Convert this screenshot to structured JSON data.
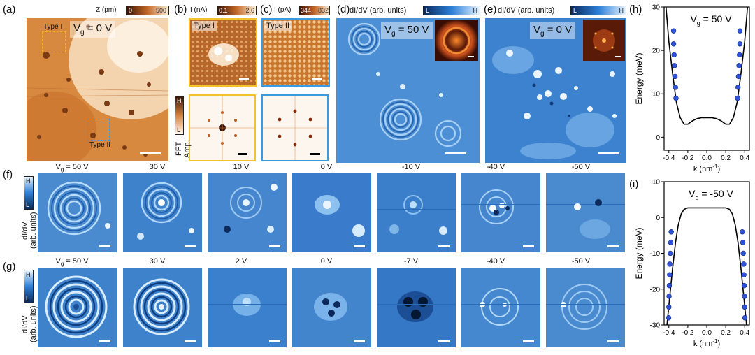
{
  "panels": {
    "a": {
      "letter": "(a)",
      "cbar_title": "Z (pm)",
      "cbar_min": "0",
      "cbar_max": "500",
      "vg": "V",
      "vg_sub": "g",
      "vg_val": " = 0 V",
      "type1": "Type I",
      "type2": "Type II"
    },
    "b": {
      "letter": "(b)",
      "cbar_title": "I (nA)",
      "cbar_min": "0.1",
      "cbar_max": "2.6",
      "tag": "Type I"
    },
    "c": {
      "letter": "(c)",
      "cbar_title": "I (pA)",
      "cbar_min": "344",
      "cbar_max": "832",
      "tag": "Type II"
    },
    "fft": {
      "label": "FFT Amp.",
      "hi": "H",
      "lo": "L"
    },
    "d": {
      "letter": "(d)",
      "cbar_title": "dI/dV (arb. units)",
      "lo": "L",
      "hi": "H",
      "vg": "V",
      "vg_sub": "g",
      "vg_val": " = 50 V"
    },
    "e": {
      "letter": "(e)",
      "cbar_title": "dI/dV (arb. units)",
      "lo": "L",
      "hi": "H",
      "vg": "V",
      "vg_sub": "g",
      "vg_val": " = 0 V"
    },
    "f": {
      "letter": "(f)",
      "ylabel1": "dI/dV",
      "ylabel2": "(arb. units)",
      "hi": "H",
      "lo": "L",
      "vg": "V",
      "vg_sub": "g",
      "captions": [
        " = 50 V",
        "30 V",
        "10 V",
        "0 V",
        "-10 V",
        "-40 V",
        "-50 V"
      ]
    },
    "g": {
      "letter": "(g)",
      "ylabel1": "dI/dV",
      "ylabel2": "(arb. units)",
      "hi": "H",
      "lo": "L",
      "vg": "V",
      "vg_sub": "g",
      "captions": [
        " = 50 V",
        "30 V",
        "2 V",
        "0 V",
        "-7 V",
        "-40 V",
        "-50 V"
      ]
    }
  },
  "chart_data": [
    {
      "panel": "(h)",
      "type": "line",
      "title": "V_g = 50 V",
      "title_main": "V",
      "title_sub": "g",
      "title_rest": " = 50 V",
      "xlabel": "k (nm",
      "xlabel_sup": "-1",
      "xlabel_end": ")",
      "ylabel": "Energy (meV)",
      "xlim": [
        -0.45,
        0.45
      ],
      "ylim": [
        -3,
        30
      ],
      "xticks": [
        "-0.4",
        "-0.2",
        "0.0",
        "0.2",
        "0.4"
      ],
      "xtick_values": [
        -0.4,
        -0.2,
        0.0,
        0.2,
        0.4
      ],
      "yticks": [
        "0",
        "10",
        "20",
        "30"
      ],
      "ytick_values": [
        0,
        10,
        20,
        30
      ],
      "curve": {
        "k": [
          -0.43,
          -0.4,
          -0.36,
          -0.32,
          -0.28,
          -0.24,
          -0.2,
          -0.15,
          -0.1,
          -0.05,
          0,
          0.05,
          0.1,
          0.15,
          0.2,
          0.24,
          0.28,
          0.32,
          0.36,
          0.4,
          0.43
        ],
        "E": [
          30,
          22,
          14.5,
          8,
          4.5,
          3,
          3,
          3.8,
          4.3,
          4.5,
          4.5,
          4.5,
          4.3,
          3.8,
          3,
          3,
          4.5,
          8,
          14.5,
          22,
          30
        ]
      },
      "points": {
        "k": [
          -0.35,
          -0.35,
          -0.345,
          -0.34,
          -0.335,
          -0.33,
          -0.325,
          0.325,
          0.33,
          0.335,
          0.34,
          0.345,
          0.35,
          0.35
        ],
        "E": [
          24.5,
          21.5,
          19,
          16.5,
          14,
          11.5,
          9,
          9,
          11.5,
          14,
          16.5,
          19,
          21.5,
          24.5
        ]
      }
    },
    {
      "panel": "(i)",
      "type": "line",
      "title": "V_g = -50 V",
      "title_main": "V",
      "title_sub": "g",
      "title_rest": " = -50 V",
      "xlabel": "k (nm",
      "xlabel_sup": "-1",
      "xlabel_end": ")",
      "ylabel": "Energy (meV)",
      "xlim": [
        -0.45,
        0.45
      ],
      "ylim": [
        -30,
        10
      ],
      "xticks": [
        "-0.4",
        "-0.2",
        "0.0",
        "0.2",
        "0.4"
      ],
      "xtick_values": [
        -0.4,
        -0.2,
        0.0,
        0.2,
        0.4
      ],
      "yticks": [
        "-30",
        "-20",
        "-10",
        "0",
        "10"
      ],
      "ytick_values": [
        -30,
        -20,
        -10,
        0,
        10
      ],
      "curve": {
        "k": [
          -0.42,
          -0.39,
          -0.36,
          -0.33,
          -0.3,
          -0.27,
          -0.24,
          -0.2,
          -0.1,
          0,
          0.1,
          0.2,
          0.24,
          0.27,
          0.3,
          0.33,
          0.36,
          0.39,
          0.42
        ],
        "E": [
          -30,
          -22,
          -14,
          -7,
          -2,
          1,
          2.3,
          2.7,
          2.7,
          2.7,
          2.7,
          2.7,
          2.3,
          1,
          -2,
          -7,
          -14,
          -22,
          -30
        ]
      },
      "points": {
        "k": [
          -0.375,
          -0.38,
          -0.385,
          -0.39,
          -0.392,
          -0.395,
          -0.398,
          -0.4,
          -0.402,
          0.375,
          0.38,
          0.385,
          0.39,
          0.392,
          0.395,
          0.398,
          0.4,
          0.402
        ],
        "E": [
          -4,
          -7,
          -10,
          -13,
          -16,
          -19,
          -22,
          -25,
          -28,
          -4,
          -7,
          -10,
          -13,
          -16,
          -19,
          -22,
          -25,
          -28
        ]
      }
    }
  ]
}
